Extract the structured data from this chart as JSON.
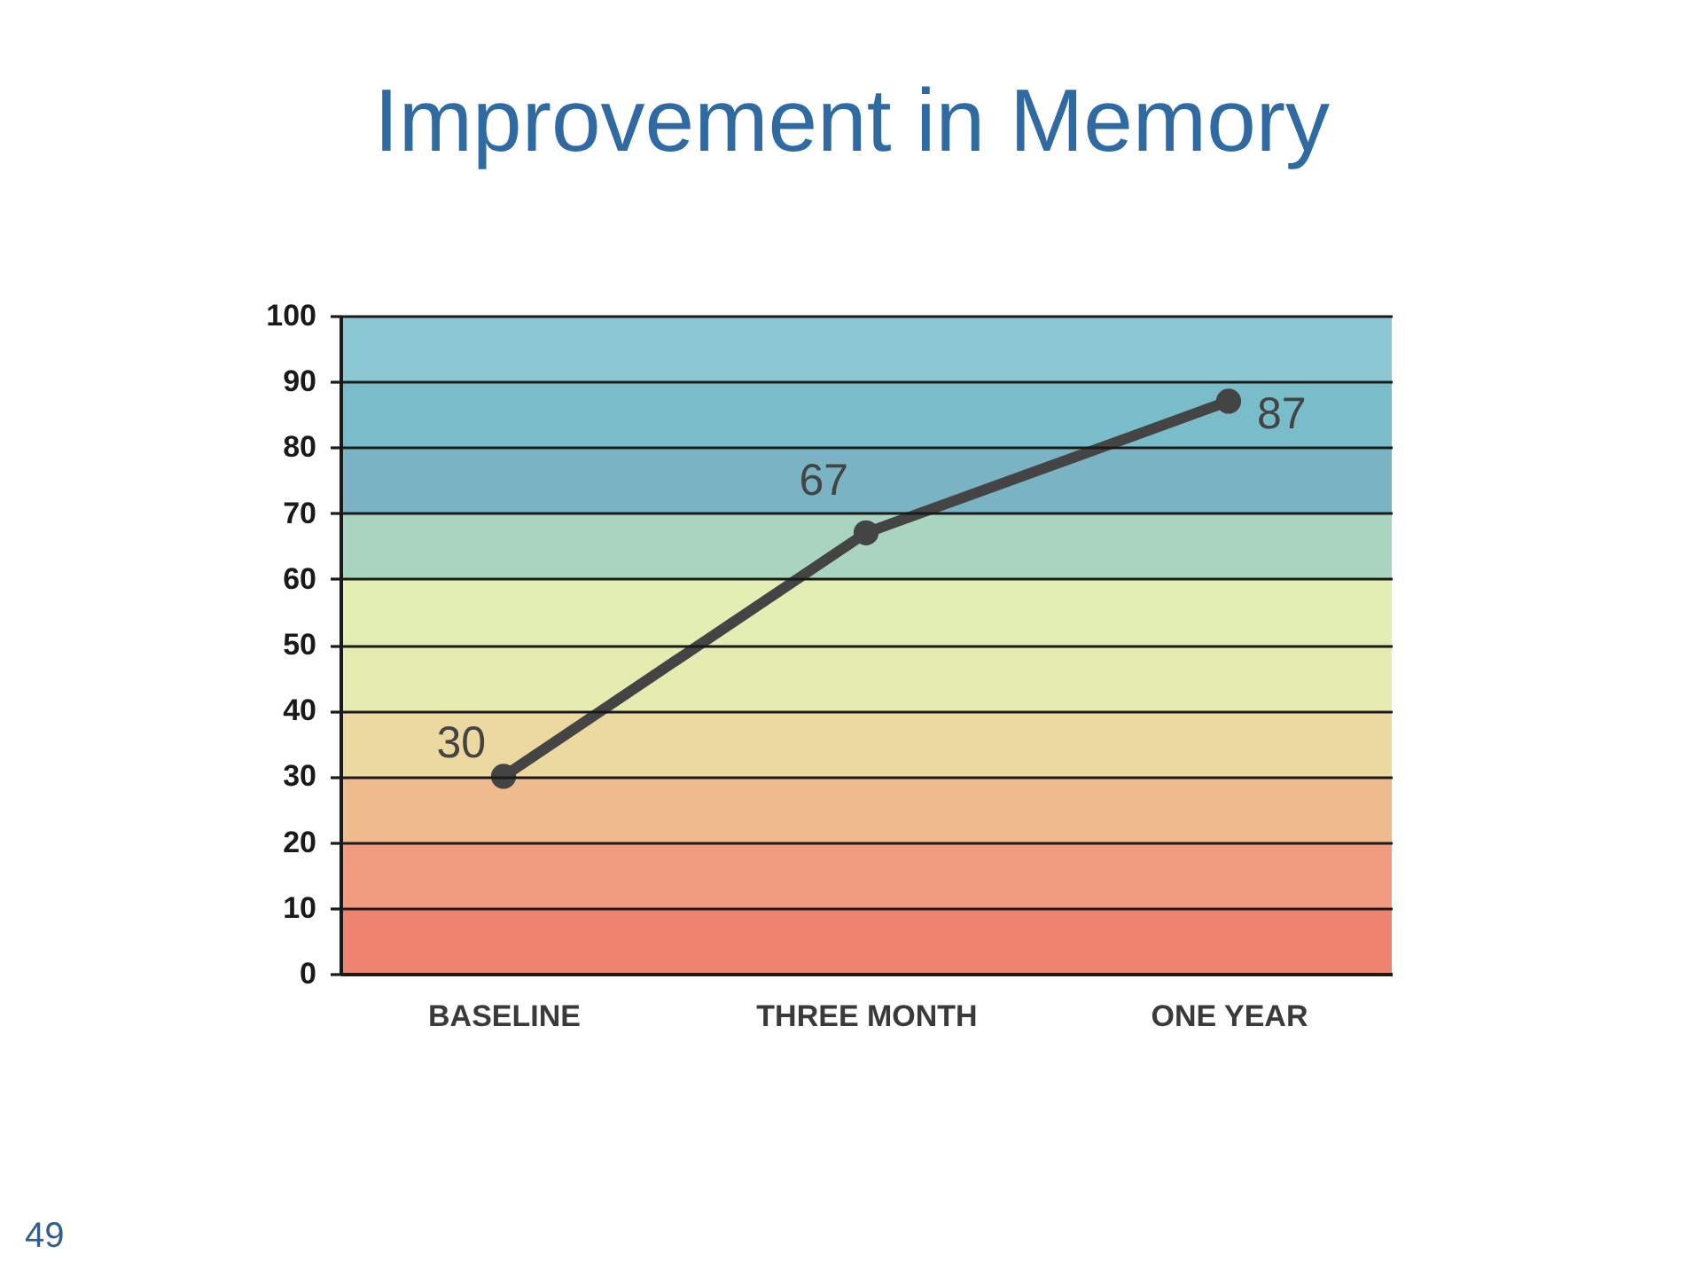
{
  "chart_data": {
    "type": "line",
    "title": "Improvement in Memory",
    "categories": [
      "BASELINE",
      "THREE MONTH",
      "ONE YEAR"
    ],
    "values": [
      30,
      67,
      87
    ],
    "color": "#444444",
    "ylim": [
      0,
      100
    ],
    "yticks": [
      0,
      10,
      20,
      30,
      40,
      50,
      60,
      70,
      80,
      90,
      100
    ],
    "grid": "y",
    "marker": "circle",
    "line_style": "solid",
    "data_labels": true,
    "bands": [
      {
        "axis": "y",
        "from": 0,
        "to": 10,
        "color": "#ee8370"
      },
      {
        "axis": "y",
        "from": 10,
        "to": 20,
        "color": "#f19c7e"
      },
      {
        "axis": "y",
        "from": 20,
        "to": 30,
        "color": "#efba8e"
      },
      {
        "axis": "y",
        "from": 30,
        "to": 40,
        "color": "#ecd9a2"
      },
      {
        "axis": "y",
        "from": 40,
        "to": 50,
        "color": "#e6ecb0"
      },
      {
        "axis": "y",
        "from": 50,
        "to": 60,
        "color": "#e2eeb4"
      },
      {
        "axis": "y",
        "from": 60,
        "to": 70,
        "color": "#a9d5c0"
      },
      {
        "axis": "y",
        "from": 70,
        "to": 80,
        "color": "#7ab3c3"
      },
      {
        "axis": "y",
        "from": 80,
        "to": 90,
        "color": "#79bdcb"
      },
      {
        "axis": "y",
        "from": 90,
        "to": 100,
        "color": "#8cc8d3"
      }
    ],
    "annotations": [
      "49"
    ]
  }
}
